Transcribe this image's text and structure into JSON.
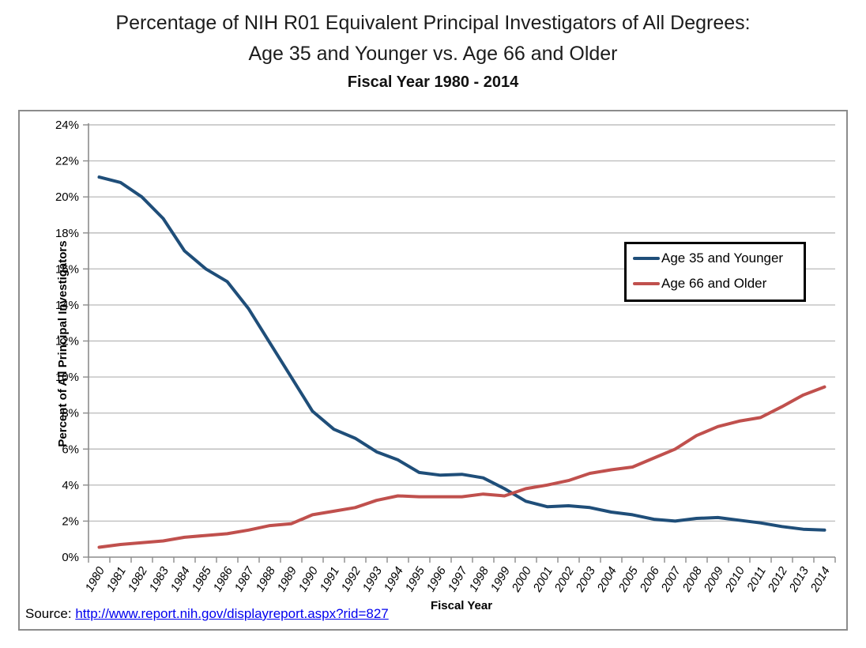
{
  "title": {
    "line1": "Percentage of NIH R01 Equivalent Principal Investigators of All Degrees:",
    "line2": "Age 35 and Younger vs. Age 66 and Older",
    "line3": "Fiscal Year 1980 - 2014"
  },
  "source": {
    "label": "Source:",
    "url_text": "http://www.report.nih.gov/displayreport.aspx?rid=827"
  },
  "colors": {
    "series_blue": "#1F4E79",
    "series_red": "#C0504D",
    "gridline": "#BFBFBF",
    "axis": "#8C8C8C",
    "tick_text": "#000000",
    "link": "#0000EE"
  },
  "chart_data": {
    "type": "line",
    "title": "Percentage of NIH R01 Equivalent Principal Investigators of All Degrees: Age 35 and Younger vs. Age 66 and Older, Fiscal Year 1980 - 2014",
    "xlabel": "Fiscal Year",
    "ylabel": "Percent of All Principal Investigators",
    "ylim": [
      0,
      24
    ],
    "ytick_step": 2,
    "ytick_suffix": "%",
    "grid": true,
    "legend_position": "middle-right",
    "x": [
      1980,
      1981,
      1982,
      1983,
      1984,
      1985,
      1986,
      1987,
      1988,
      1989,
      1990,
      1991,
      1992,
      1993,
      1994,
      1995,
      1996,
      1997,
      1998,
      1999,
      2000,
      2001,
      2002,
      2003,
      2004,
      2005,
      2006,
      2007,
      2008,
      2009,
      2010,
      2011,
      2012,
      2013,
      2014
    ],
    "series": [
      {
        "name": "Age 35 and Younger",
        "color_key": "series_blue",
        "values": [
          21.1,
          20.8,
          20.0,
          18.8,
          17.0,
          16.0,
          15.3,
          13.8,
          11.9,
          10.0,
          8.1,
          7.1,
          6.6,
          5.85,
          5.4,
          4.7,
          4.55,
          4.6,
          4.4,
          3.8,
          3.1,
          2.8,
          2.85,
          2.75,
          2.5,
          2.35,
          2.1,
          2.0,
          2.15,
          2.2,
          2.05,
          1.9,
          1.7,
          1.55,
          1.5
        ]
      },
      {
        "name": "Age 66 and Older",
        "color_key": "series_red",
        "values": [
          0.55,
          0.7,
          0.8,
          0.9,
          1.1,
          1.2,
          1.3,
          1.5,
          1.75,
          1.85,
          2.35,
          2.55,
          2.75,
          3.15,
          3.4,
          3.35,
          3.35,
          3.35,
          3.5,
          3.4,
          3.8,
          4.0,
          4.25,
          4.65,
          4.85,
          5.0,
          5.5,
          6.0,
          6.75,
          7.25,
          7.55,
          7.75,
          8.35,
          9.0,
          9.45
        ]
      }
    ]
  }
}
